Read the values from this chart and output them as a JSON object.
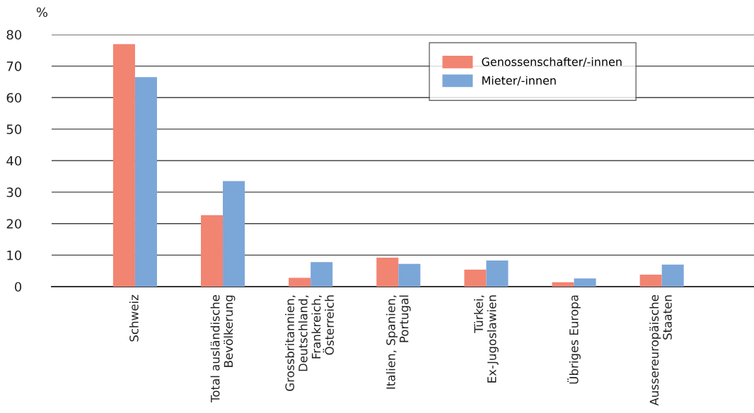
{
  "chart_data": {
    "type": "bar",
    "ylabel": "%",
    "categories": [
      "Schweiz",
      "Total ausländische\nBevölkerung",
      "Grossbritannien,\nDeutschland,\nFrankreich,\nÖsterreich",
      "Italien, Spanien,\nPortugal",
      "Türkei,\nEx-Jugoslawien",
      "Übriges Europa",
      "Aussereuropäische\nStaaten"
    ],
    "series": [
      {
        "name": "Genossenschafter/-innen",
        "color": "#f28472",
        "values": [
          77,
          22.7,
          2.8,
          9.2,
          5.4,
          1.4,
          3.8
        ]
      },
      {
        "name": "Mieter/-innen",
        "color": "#7ba6d8",
        "values": [
          66.5,
          33.5,
          7.8,
          7.2,
          8.3,
          2.6,
          7.0
        ]
      }
    ],
    "ylim": [
      0,
      80
    ],
    "yticks": [
      0,
      10,
      20,
      30,
      40,
      50,
      60,
      70,
      80
    ],
    "grid": "y",
    "legend": "top right"
  }
}
